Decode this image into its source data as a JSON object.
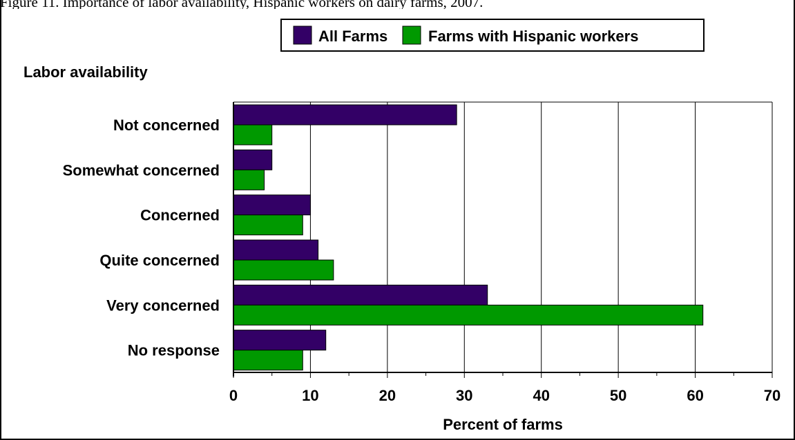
{
  "caption": "Figure 11. Importance of labor availability, Hispanic workers on dairy farms, 2007.",
  "chart_data": {
    "type": "bar",
    "orientation": "horizontal",
    "title": "Labor availability",
    "xlabel": "Percent of farms",
    "ylabel": "",
    "xlim": [
      0,
      70
    ],
    "xticks": [
      0,
      10,
      20,
      30,
      40,
      50,
      60,
      70
    ],
    "categories": [
      "Not concerned",
      "Somewhat concerned",
      "Concerned",
      "Quite concerned",
      "Very concerned",
      "No response"
    ],
    "series": [
      {
        "name": "All Farms",
        "values": [
          29,
          5,
          10,
          11,
          33,
          12
        ],
        "color": "#330066"
      },
      {
        "name": "Farms with Hispanic workers",
        "values": [
          5,
          4,
          9,
          13,
          61,
          9
        ],
        "color": "#009900"
      }
    ],
    "grid": true,
    "legend": "top-center"
  }
}
